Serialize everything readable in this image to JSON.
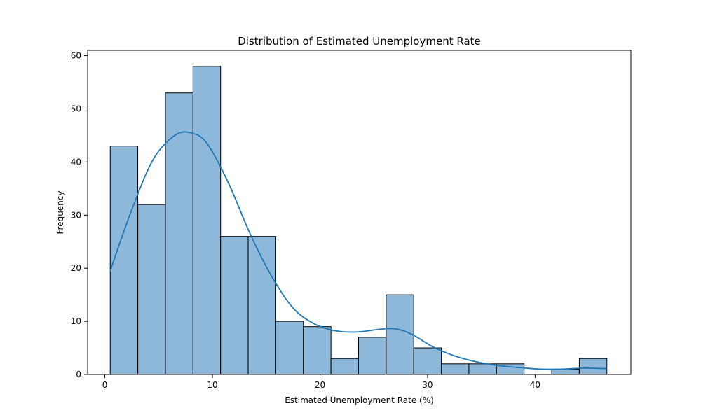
{
  "chart_data": {
    "type": "bar",
    "title": "Distribution of Estimated Unemployment Rate",
    "xlabel": "Estimated Unemployment Rate (%)",
    "ylabel": "Frequency",
    "xlim": [
      -1.6,
      48.9
    ],
    "ylim": [
      0,
      61
    ],
    "xticks": [
      0,
      10,
      20,
      30,
      40
    ],
    "yticks": [
      0,
      10,
      20,
      30,
      40,
      50,
      60
    ],
    "bin_start": 0.5,
    "bin_width": 2.565,
    "values": [
      43,
      32,
      53,
      58,
      26,
      26,
      10,
      9,
      3,
      7,
      15,
      5,
      2,
      2,
      2,
      0,
      1,
      3
    ],
    "kde": {
      "x": [
        0.5,
        2.5,
        4.5,
        6.5,
        8.0,
        9.5,
        11.5,
        13.5,
        15.5,
        17.5,
        19.5,
        21.5,
        23.5,
        25.5,
        27.0,
        28.5,
        30.5,
        32.5,
        34.5,
        36.5,
        38.5,
        40.5,
        42.5,
        44.5,
        46.7
      ],
      "y": [
        19.5,
        31,
        40.5,
        45,
        45.5,
        43.5,
        36,
        26.5,
        18.5,
        12.5,
        9.5,
        8.2,
        8.0,
        8.5,
        8.6,
        7.6,
        5.2,
        3.5,
        2.4,
        1.7,
        1.3,
        1.0,
        1.0,
        1.2,
        1.1
      ]
    },
    "colors": {
      "bar_fill": "#8db8d9",
      "bar_edge": "#000000",
      "kde_line": "#1f77b4"
    },
    "grid": false,
    "legend": "none"
  }
}
